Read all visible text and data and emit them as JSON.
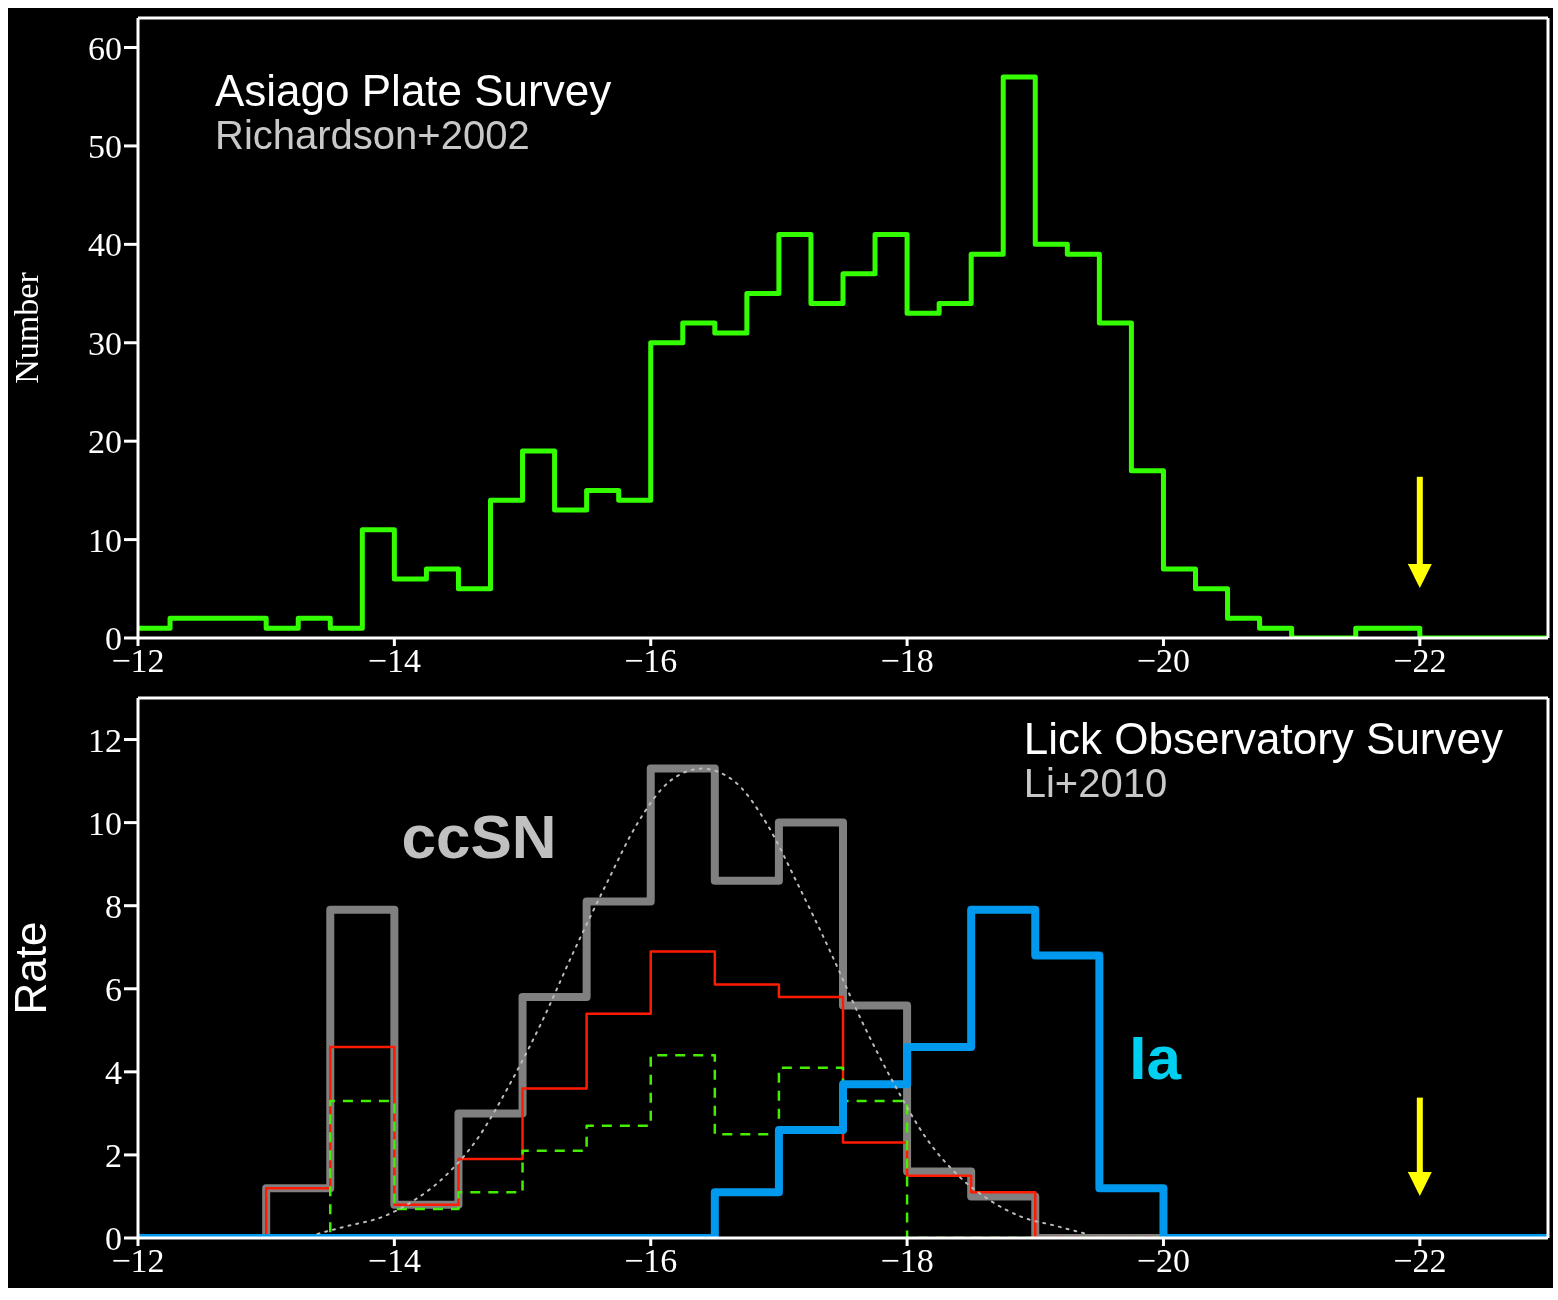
{
  "chart_data": [
    {
      "type": "histogram",
      "title": "Asiago Plate Survey",
      "subtitle": "Richardson+2002",
      "ylabel": "Number",
      "color": "#33ff00",
      "bins": [
        -12,
        -12.25,
        -12.5,
        -12.75,
        -13,
        -13.25,
        -13.5,
        -13.75,
        -14,
        -14.25,
        -14.5,
        -14.75,
        -15,
        -15.25,
        -15.5,
        -15.75,
        -16,
        -16.25,
        -16.5,
        -16.75,
        -17,
        -17.25,
        -17.5,
        -17.75,
        -18,
        -18.25,
        -18.5,
        -18.75,
        -19,
        -19.25,
        -19.5,
        -19.75,
        -20,
        -20.25,
        -20.5,
        -20.75,
        -21,
        -21.25,
        -21.5,
        -21.75,
        -22,
        -22.25,
        -22.5,
        -22.75,
        -23
      ],
      "values": [
        1,
        2,
        2,
        2,
        1,
        2,
        1,
        11,
        6,
        7,
        5,
        14,
        19,
        13,
        15,
        14,
        30,
        32,
        31,
        35,
        41,
        34,
        37,
        41,
        33,
        34,
        39,
        57,
        40,
        39,
        32,
        17,
        7,
        5,
        2,
        1,
        0,
        0,
        1,
        1,
        0,
        0,
        0,
        0
      ],
      "xlim": [
        -12,
        -23
      ],
      "xticks": [
        -12,
        -14,
        -16,
        -18,
        -20,
        -22
      ],
      "ylim": [
        0,
        63
      ],
      "yticks": [
        0,
        10,
        20,
        30,
        40,
        50,
        60
      ],
      "ref_lines": [
        {
          "axis": "x",
          "value": -22,
          "color": "#ffff00"
        }
      ]
    },
    {
      "type": "histogram",
      "title": "Lick Observatory Survey",
      "subtitle": "Li+2010",
      "ylabel": "Rate",
      "bins": [
        -12,
        -12.5,
        -13,
        -13.5,
        -14,
        -14.5,
        -15,
        -15.5,
        -16,
        -16.5,
        -17,
        -17.5,
        -18,
        -18.5,
        -19,
        -19.5,
        -20,
        -20.5,
        -21,
        -21.5,
        -22,
        -22.5,
        -23
      ],
      "series": [
        {
          "name": "ccSN",
          "color": "#808080",
          "values": [
            0,
            0,
            1.2,
            7.9,
            0.8,
            3.0,
            5.8,
            8.1,
            11.3,
            8.6,
            10.0,
            5.6,
            1.6,
            1.0,
            0,
            0,
            0,
            0,
            0,
            0,
            0,
            0
          ]
        },
        {
          "color": "#ff1a00",
          "values": [
            0,
            0,
            1.2,
            4.6,
            0.8,
            1.9,
            3.6,
            5.4,
            6.9,
            6.1,
            5.8,
            2.3,
            1.5,
            1.1,
            0,
            0,
            0,
            0,
            0,
            0,
            0,
            0
          ]
        },
        {
          "color": "#44ee00",
          "line_style": "dashed",
          "values": [
            0,
            0,
            0,
            3.3,
            0.7,
            1.1,
            2.1,
            2.7,
            4.4,
            2.5,
            4.1,
            3.3,
            0,
            0,
            0,
            0,
            0,
            0,
            0,
            0,
            0,
            0
          ]
        },
        {
          "name": "Ia",
          "color": "#0099ee",
          "values": [
            0,
            0,
            0,
            0,
            0,
            0,
            0,
            0,
            0,
            1.1,
            2.6,
            3.7,
            4.6,
            7.9,
            6.8,
            1.2,
            0,
            0,
            0,
            0,
            0,
            0
          ]
        },
        {
          "type": "line",
          "color": "#bbbbbb",
          "line_style": "dotted",
          "x": [
            -13.4,
            -13.65,
            -13.9,
            -14.15,
            -14.4,
            -14.65,
            -14.9,
            -15.15,
            -15.4,
            -15.65,
            -15.9,
            -16.15,
            -16.4,
            -16.65,
            -16.9,
            -17.15,
            -17.4,
            -17.65,
            -17.9,
            -18.15,
            -18.4,
            -18.65,
            -18.9,
            -19.15,
            -19.4
          ],
          "values": [
            0.1,
            0.3,
            0.5,
            0.9,
            1.5,
            2.4,
            3.7,
            5.2,
            6.9,
            8.5,
            10.0,
            11.0,
            11.3,
            11.0,
            10.0,
            8.5,
            6.9,
            5.2,
            3.7,
            2.4,
            1.5,
            0.9,
            0.5,
            0.3,
            0.1
          ]
        }
      ],
      "xlim": [
        -12,
        -23
      ],
      "xticks": [
        -12,
        -14,
        -16,
        -18,
        -20,
        -22
      ],
      "ylim": [
        0,
        13
      ],
      "yticks": [
        0,
        2,
        4,
        6,
        8,
        10,
        12
      ],
      "ref_lines": [
        {
          "axis": "x",
          "value": -22,
          "color": "#ffff00"
        }
      ]
    }
  ]
}
